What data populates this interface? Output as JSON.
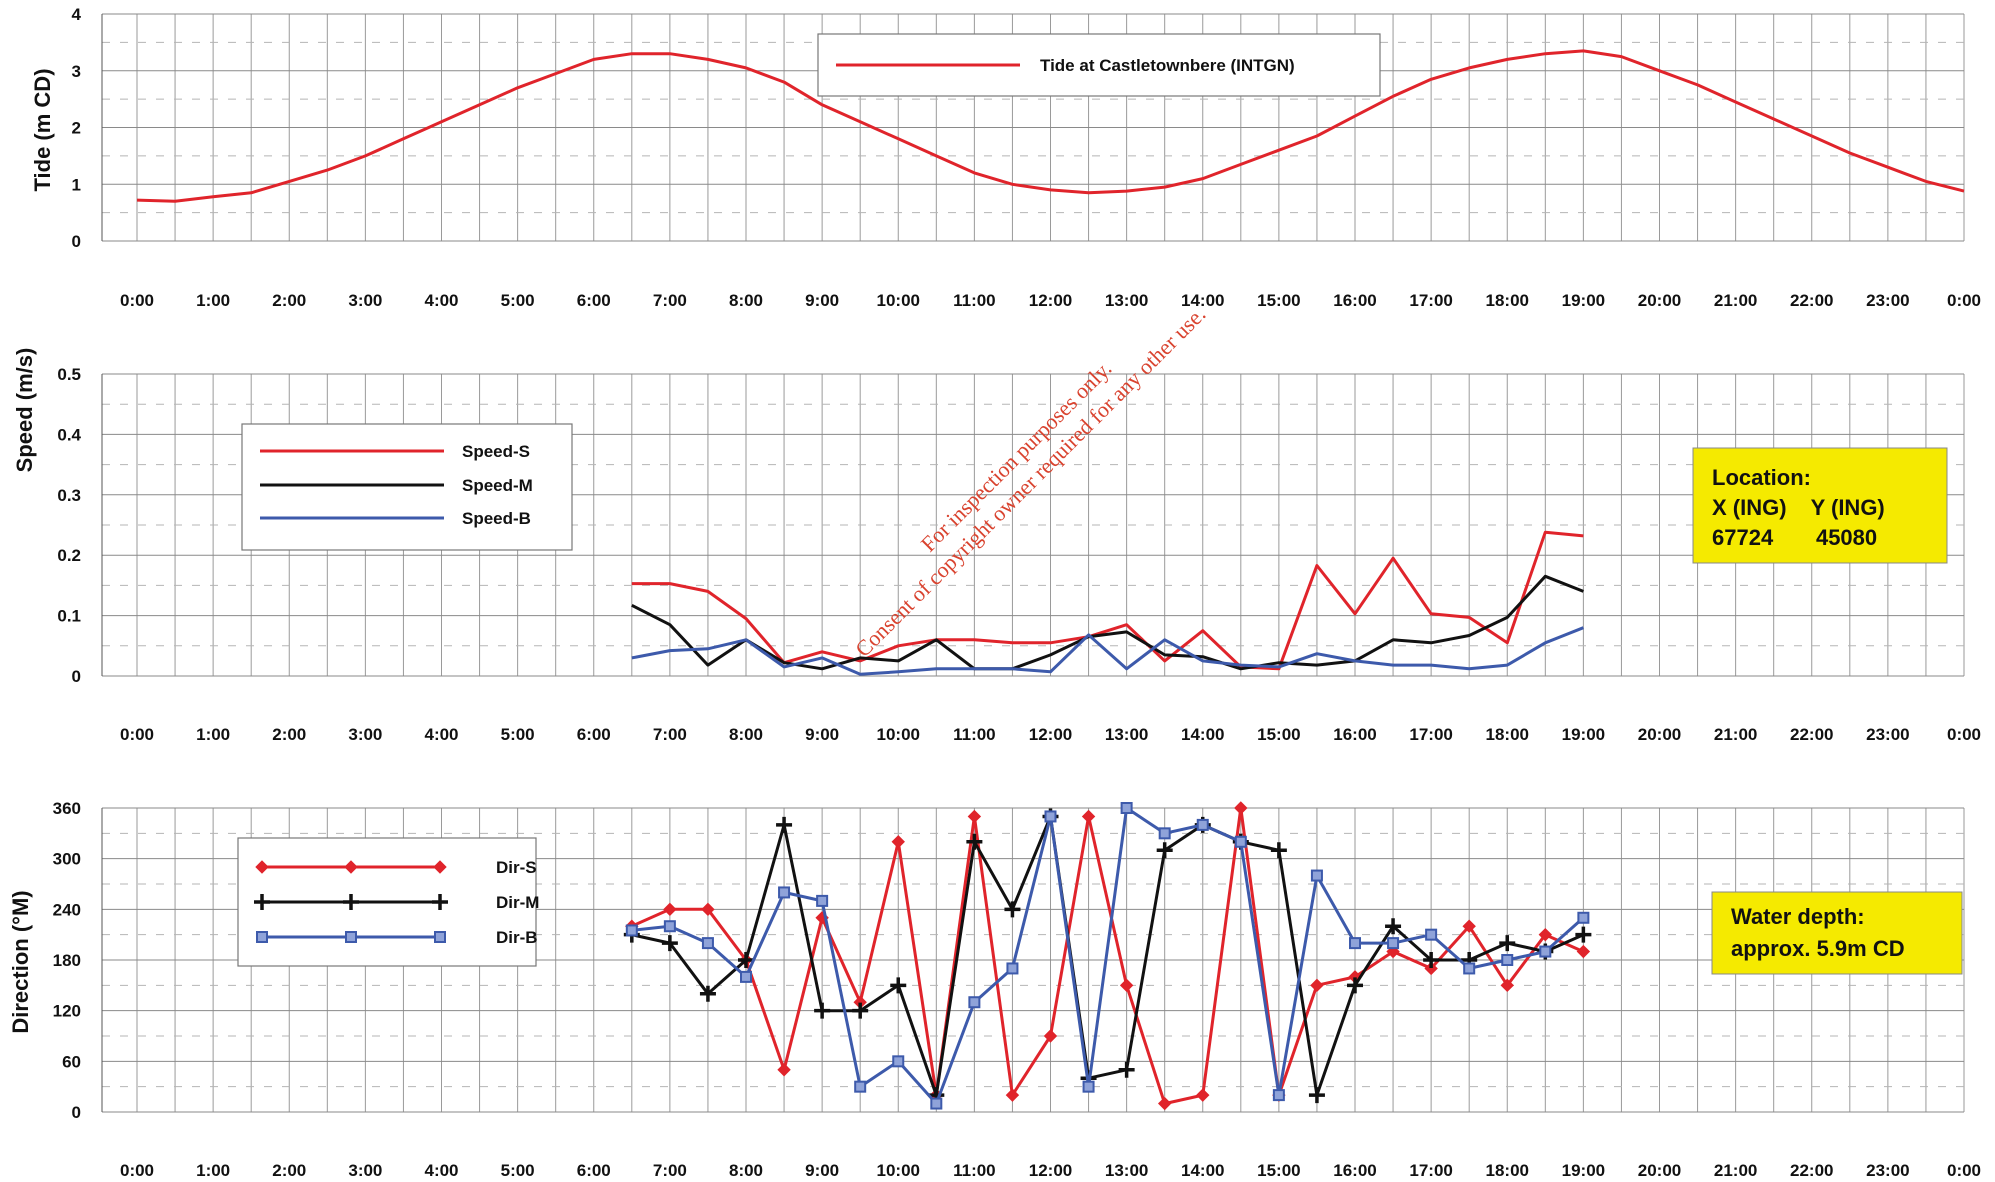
{
  "chart_data": [
    {
      "type": "line",
      "ylabel": "Tide (m CD)",
      "ylim": [
        0,
        4
      ],
      "yticks": [
        "0",
        "1",
        "2",
        "3",
        "4"
      ],
      "x_tick_labels": [
        "0:00",
        "1:00",
        "2:00",
        "3:00",
        "4:00",
        "5:00",
        "6:00",
        "7:00",
        "8:00",
        "9:00",
        "10:00",
        "11:00",
        "12:00",
        "13:00",
        "14:00",
        "15:00",
        "16:00",
        "17:00",
        "18:00",
        "19:00",
        "20:00",
        "21:00",
        "22:00",
        "23:00",
        "0:00"
      ],
      "legend_position": "top-center",
      "grid": true,
      "series": [
        {
          "name": "Tide at Castletownbere (INTGN)",
          "color": "#e0242b",
          "x_hours": [
            0,
            0.5,
            1,
            1.5,
            2,
            2.5,
            3,
            3.5,
            4,
            4.5,
            5,
            5.5,
            6,
            6.5,
            7,
            7.5,
            8,
            8.5,
            9,
            9.5,
            10,
            10.5,
            11,
            11.5,
            12,
            12.5,
            13,
            13.5,
            14,
            14.5,
            15,
            15.5,
            16,
            16.5,
            17,
            17.5,
            18,
            18.5,
            19,
            19.5,
            20,
            20.5,
            21,
            21.5,
            22,
            22.5,
            23,
            23.5,
            24
          ],
          "values": [
            0.72,
            0.7,
            0.78,
            0.85,
            1.05,
            1.25,
            1.5,
            1.8,
            2.1,
            2.4,
            2.7,
            2.95,
            3.2,
            3.3,
            3.3,
            3.2,
            3.05,
            2.8,
            2.4,
            2.1,
            1.8,
            1.5,
            1.2,
            1.0,
            0.9,
            0.85,
            0.88,
            0.95,
            1.1,
            1.35,
            1.6,
            1.85,
            2.2,
            2.55,
            2.85,
            3.05,
            3.2,
            3.3,
            3.35,
            3.25,
            3.0,
            2.75,
            2.45,
            2.15,
            1.85,
            1.55,
            1.3,
            1.05,
            0.88
          ]
        }
      ]
    },
    {
      "type": "line",
      "ylabel": "Speed (m/s)",
      "ylim": [
        0,
        0.5
      ],
      "yticks": [
        "0",
        "0.1",
        "0.2",
        "0.3",
        "0.4",
        "0.5"
      ],
      "x_tick_labels": [
        "0:00",
        "1:00",
        "2:00",
        "3:00",
        "4:00",
        "5:00",
        "6:00",
        "7:00",
        "8:00",
        "9:00",
        "10:00",
        "11:00",
        "12:00",
        "13:00",
        "14:00",
        "15:00",
        "16:00",
        "17:00",
        "18:00",
        "19:00",
        "20:00",
        "21:00",
        "22:00",
        "23:00",
        "0:00"
      ],
      "legend_position": "top-left",
      "grid": true,
      "x_hours": [
        6.5,
        7,
        7.5,
        8,
        8.5,
        9,
        9.5,
        10,
        10.5,
        11,
        11.5,
        12,
        12.5,
        13,
        13.5,
        14,
        14.5,
        15,
        15.5,
        16,
        16.5,
        17,
        17.5,
        18,
        18.5,
        19
      ],
      "series": [
        {
          "name": "Speed-S",
          "color": "#e0242b",
          "values": [
            0.153,
            0.153,
            0.14,
            0.095,
            0.022,
            0.04,
            0.025,
            0.05,
            0.06,
            0.06,
            0.055,
            0.055,
            0.065,
            0.085,
            0.025,
            0.075,
            0.015,
            0.012,
            0.183,
            0.103,
            0.195,
            0.103,
            0.097,
            0.055,
            0.238,
            0.232
          ]
        },
        {
          "name": "Speed-M",
          "color": "#111111",
          "values": [
            0.117,
            0.085,
            0.018,
            0.06,
            0.022,
            0.012,
            0.03,
            0.025,
            0.06,
            0.012,
            0.012,
            0.035,
            0.065,
            0.073,
            0.035,
            0.032,
            0.012,
            0.022,
            0.018,
            0.025,
            0.06,
            0.055,
            0.067,
            0.097,
            0.165,
            0.14
          ]
        },
        {
          "name": "Speed-B",
          "color": "#3d5aab",
          "values": [
            0.03,
            0.042,
            0.045,
            0.06,
            0.015,
            0.03,
            0.003,
            0.007,
            0.012,
            0.012,
            0.012,
            0.007,
            0.068,
            0.012,
            0.06,
            0.025,
            0.018,
            0.015,
            0.037,
            0.025,
            0.018,
            0.018,
            0.012,
            0.018,
            0.055,
            0.08
          ]
        }
      ]
    },
    {
      "type": "line",
      "ylabel": "Direction (°M)",
      "ylim": [
        0,
        360
      ],
      "yticks": [
        "0",
        "60",
        "120",
        "180",
        "240",
        "300",
        "360"
      ],
      "x_tick_labels": [
        "0:00",
        "1:00",
        "2:00",
        "3:00",
        "4:00",
        "5:00",
        "6:00",
        "7:00",
        "8:00",
        "9:00",
        "10:00",
        "11:00",
        "12:00",
        "13:00",
        "14:00",
        "15:00",
        "16:00",
        "17:00",
        "18:00",
        "19:00",
        "20:00",
        "21:00",
        "22:00",
        "23:00",
        "0:00"
      ],
      "legend_position": "top-left",
      "grid": true,
      "x_hours": [
        6.5,
        7,
        7.5,
        8,
        8.5,
        9,
        9.5,
        10,
        10.5,
        11,
        11.5,
        12,
        12.5,
        13,
        13.5,
        14,
        14.5,
        15,
        15.5,
        16,
        16.5,
        17,
        17.5,
        18,
        18.5,
        19
      ],
      "series": [
        {
          "name": "Dir-S",
          "color": "#e0242b",
          "marker": "diamond",
          "values": [
            220,
            240,
            240,
            180,
            50,
            230,
            130,
            320,
            20,
            350,
            20,
            90,
            350,
            150,
            10,
            20,
            360,
            20,
            150,
            160,
            190,
            170,
            220,
            150,
            210,
            190
          ]
        },
        {
          "name": "Dir-M",
          "color": "#111111",
          "marker": "plus",
          "values": [
            210,
            200,
            140,
            180,
            340,
            120,
            120,
            150,
            20,
            320,
            240,
            350,
            40,
            50,
            310,
            340,
            320,
            310,
            20,
            150,
            220,
            180,
            180,
            200,
            190,
            210
          ]
        },
        {
          "name": "Dir-B",
          "color": "#3d5aab",
          "marker": "square",
          "values": [
            215,
            220,
            200,
            160,
            260,
            250,
            30,
            60,
            10,
            130,
            170,
            350,
            30,
            360,
            330,
            340,
            320,
            20,
            280,
            200,
            200,
            210,
            170,
            180,
            190,
            230
          ]
        }
      ]
    }
  ],
  "info_boxes": {
    "location": {
      "title": "Location:",
      "line2": "X (ING)    Y (ING)",
      "line3": "67724       45080",
      "fill": "#f5ea00"
    },
    "depth": {
      "title": "Water depth:",
      "line2": "approx. 5.9m CD",
      "fill": "#f5ea00"
    }
  },
  "watermark": {
    "line1": "For inspection purposes only.",
    "line2": "Consent of copyright owner required for any other use."
  }
}
